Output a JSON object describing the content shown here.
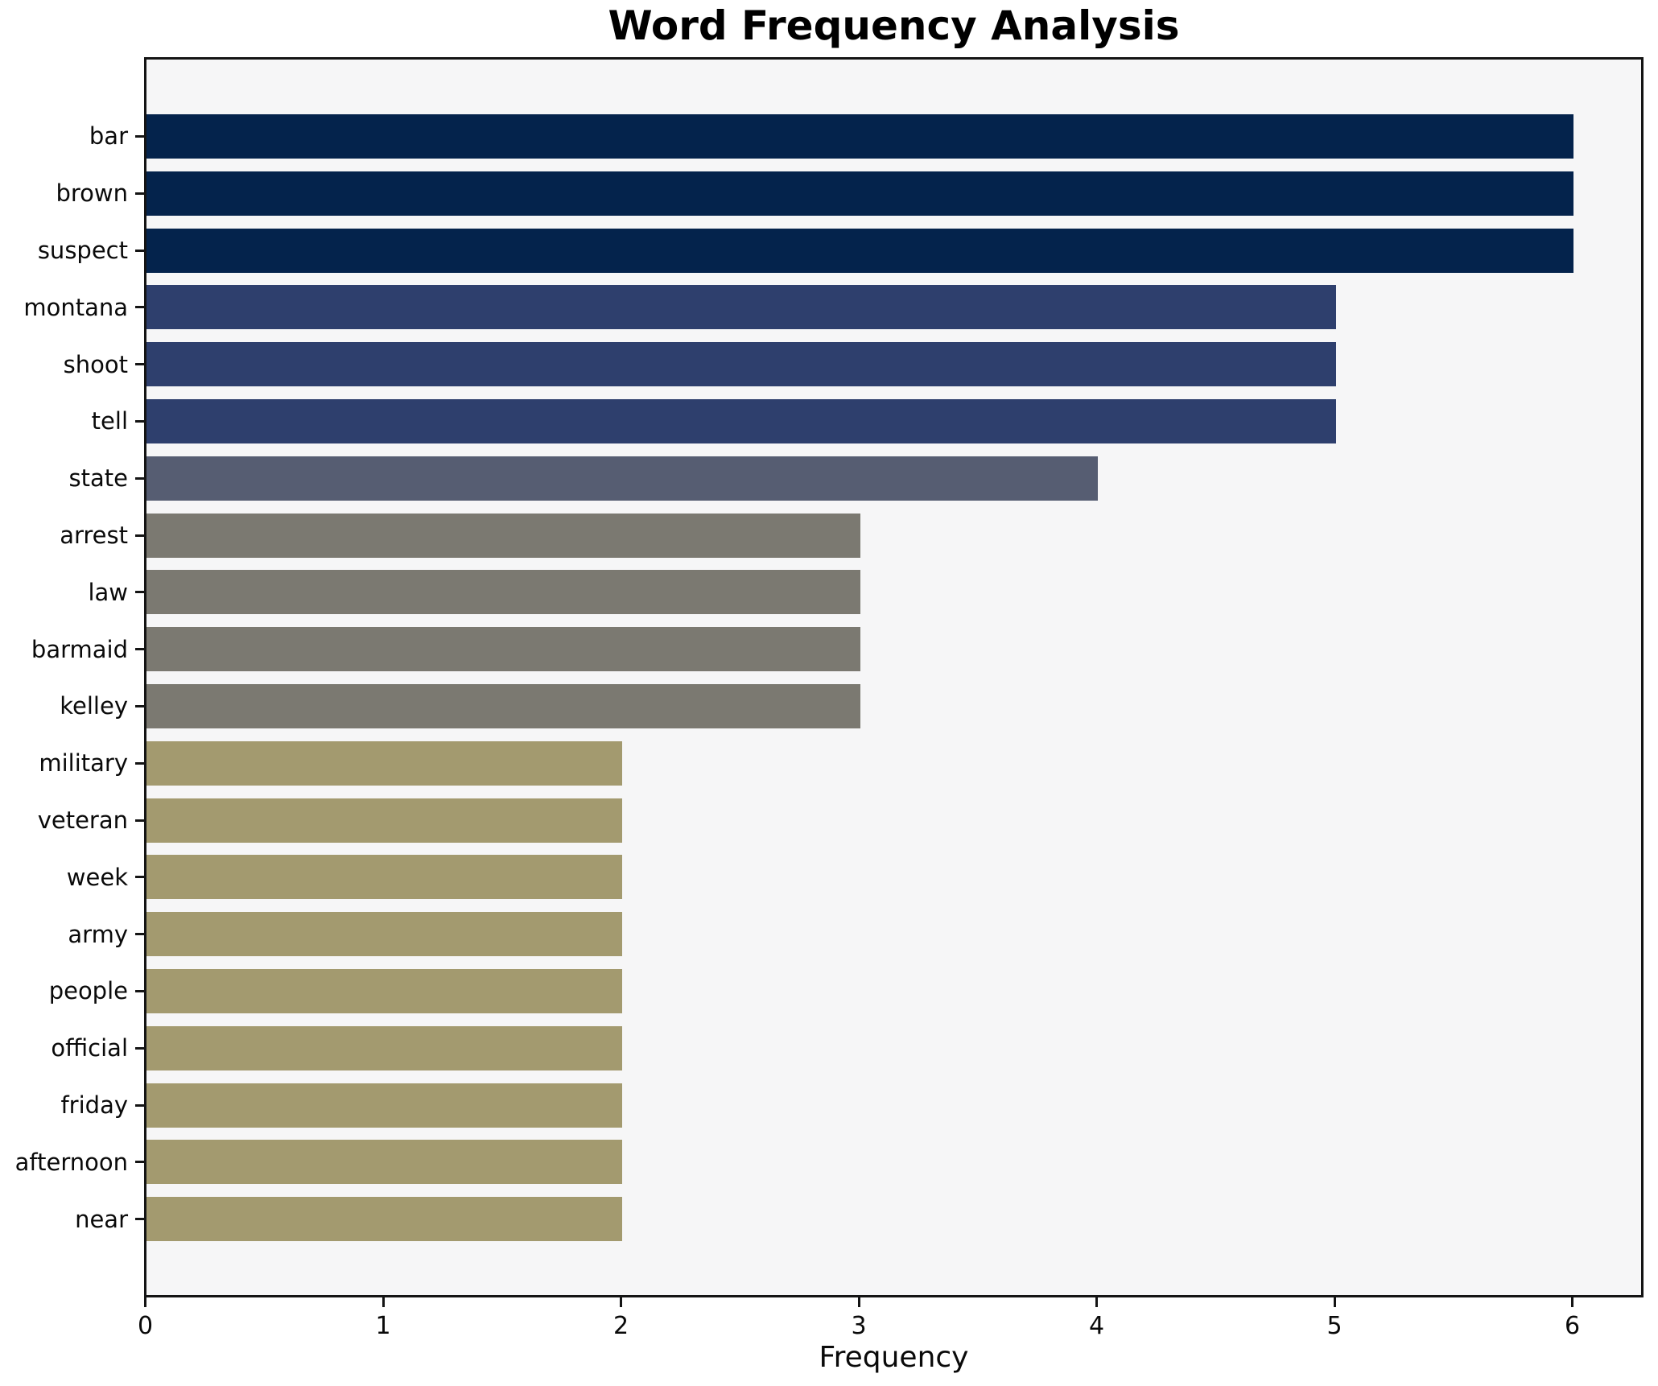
{
  "chart_data": {
    "type": "bar",
    "orientation": "horizontal",
    "title": "Word Frequency Analysis",
    "xlabel": "Frequency",
    "ylabel": "",
    "xlim": [
      0,
      6.29
    ],
    "x_ticks": [
      0,
      1,
      2,
      3,
      4,
      5,
      6
    ],
    "grid": false,
    "legend": "none",
    "categories": [
      "bar",
      "brown",
      "suspect",
      "montana",
      "shoot",
      "tell",
      "state",
      "arrest",
      "law",
      "barmaid",
      "kelley",
      "military",
      "veteran",
      "week",
      "army",
      "people",
      "official",
      "friday",
      "afternoon",
      "near"
    ],
    "values": [
      6,
      6,
      6,
      5,
      5,
      5,
      4,
      3,
      3,
      3,
      3,
      2,
      2,
      2,
      2,
      2,
      2,
      2,
      2,
      2
    ],
    "value_colors": {
      "6": "#04234c",
      "5": "#2e3f6d",
      "4": "#565d72",
      "3": "#7b7971",
      "2": "#a39a6f"
    },
    "colors": {
      "plot_background": "#f6f6f7",
      "figure_background": "#ffffff",
      "axis_spine": "#141414",
      "text": "#0a0a0a"
    }
  }
}
